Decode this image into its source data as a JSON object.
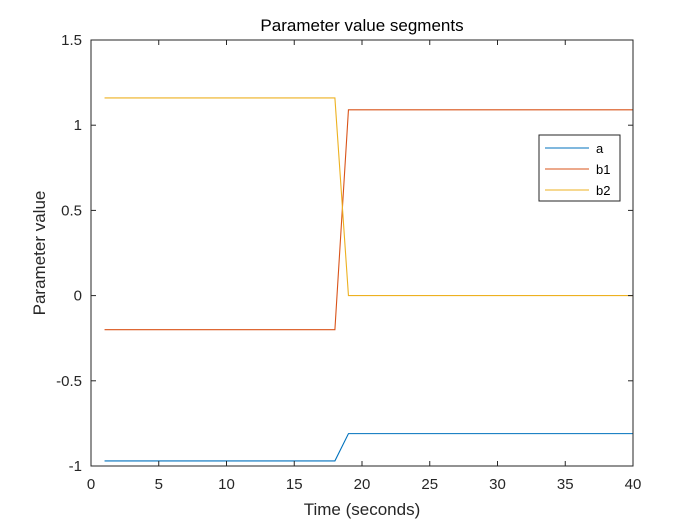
{
  "chart_data": {
    "type": "line",
    "title": "Parameter value segments",
    "xlabel": "Time (seconds)",
    "ylabel": "Parameter value",
    "xlim": [
      0,
      40
    ],
    "ylim": [
      -1,
      1.5
    ],
    "xticks": [
      0,
      5,
      10,
      15,
      20,
      25,
      30,
      35,
      40
    ],
    "xtick_labels": [
      "0",
      "5",
      "10",
      "15",
      "20",
      "25",
      "30",
      "35",
      "40"
    ],
    "yticks": [
      -1,
      -0.5,
      0,
      0.5,
      1,
      1.5
    ],
    "ytick_labels": [
      "-1",
      "-0.5",
      "0",
      "0.5",
      "1",
      "1.5"
    ],
    "grid": false,
    "legend_position": "top-right",
    "series": [
      {
        "name": "a",
        "color": "#0072BD",
        "x": [
          1,
          18,
          19,
          40
        ],
        "y": [
          -0.97,
          -0.97,
          -0.81,
          -0.81
        ]
      },
      {
        "name": "b1",
        "color": "#D95319",
        "x": [
          1,
          18,
          19,
          40
        ],
        "y": [
          -0.2,
          -0.2,
          1.09,
          1.09
        ]
      },
      {
        "name": "b2",
        "color": "#EDB120",
        "x": [
          1,
          18,
          19,
          40
        ],
        "y": [
          1.16,
          1.16,
          0.0,
          0.0
        ]
      }
    ]
  }
}
